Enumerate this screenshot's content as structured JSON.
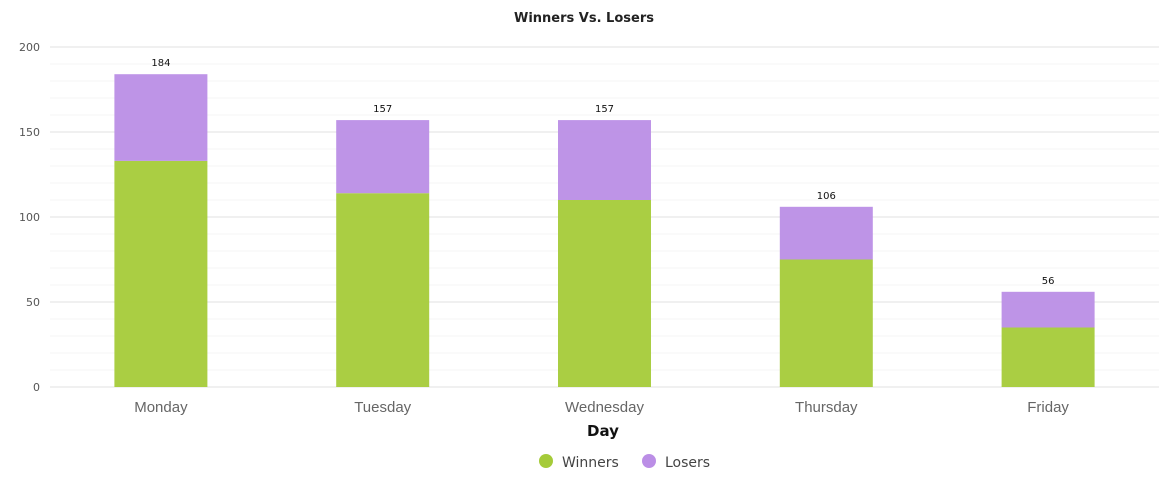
{
  "chart_data": {
    "type": "bar",
    "stacked": true,
    "title": "Winners Vs. Losers",
    "xlabel": "Day",
    "ylabel": "",
    "ylim": [
      0,
      200
    ],
    "yticks": [
      0,
      50,
      100,
      150,
      200
    ],
    "categories": [
      "Monday",
      "Tuesday",
      "Wednesday",
      "Thursday",
      "Friday"
    ],
    "series": [
      {
        "name": "Winners",
        "color": "#a5cb39",
        "values": [
          133,
          114,
          110,
          75,
          35
        ]
      },
      {
        "name": "Losers",
        "color": "#bb8ee6",
        "values": [
          51,
          43,
          47,
          31,
          21
        ]
      }
    ],
    "totals": [
      184,
      157,
      157,
      106,
      56
    ],
    "grid": true,
    "legend": "bottom-center"
  }
}
